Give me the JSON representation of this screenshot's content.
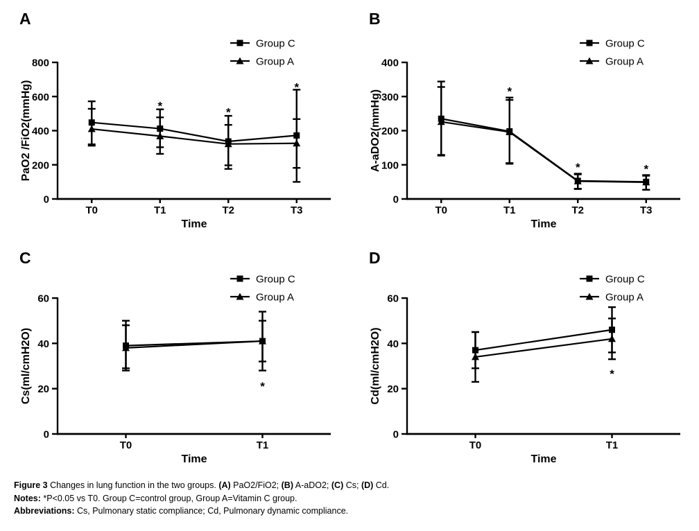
{
  "colors": {
    "ink": "#000000",
    "background": "#ffffff"
  },
  "figure": {
    "caption": {
      "lines": [
        {
          "segments": [
            {
              "text": "Figure 3",
              "bold": true
            },
            {
              "text": " Changes in lung function in the two groups. ",
              "bold": false
            },
            {
              "text": "(A)",
              "bold": true
            },
            {
              "text": " PaO2/FiO2; ",
              "bold": false
            },
            {
              "text": "(B)",
              "bold": true
            },
            {
              "text": " A-aDO2; ",
              "bold": false
            },
            {
              "text": "(C)",
              "bold": true
            },
            {
              "text": " Cs; ",
              "bold": false
            },
            {
              "text": "(D)",
              "bold": true
            },
            {
              "text": " Cd.",
              "bold": false
            }
          ]
        },
        {
          "segments": [
            {
              "text": "Notes:",
              "bold": true
            },
            {
              "text": " *P<0.05 vs T0. Group C=control group, Group A=Vitamin C group.",
              "bold": false
            }
          ]
        },
        {
          "segments": [
            {
              "text": "Abbreviations:",
              "bold": true
            },
            {
              "text": " Cs, Pulmonary static compliance; Cd, Pulmonary dynamic compliance.",
              "bold": false
            }
          ]
        }
      ]
    }
  },
  "chart_data": [
    {
      "type": "line",
      "panel_label": "A",
      "ylabel": "PaO2 /FiO2(mmHg)",
      "xlabel": "Time",
      "ylim": [
        0,
        800
      ],
      "yticks": [
        0,
        200,
        400,
        600,
        800
      ],
      "categories": [
        "T0",
        "T1",
        "T2",
        "T3"
      ],
      "grid": false,
      "legend_position": "top-right",
      "series": [
        {
          "name": "Group C",
          "marker": "square",
          "values": [
            448,
            412,
            337,
            372
          ],
          "err_low": [
            312,
            303,
            197,
            182
          ],
          "err_high": [
            572,
            525,
            487,
            640
          ]
        },
        {
          "name": "Group A",
          "marker": "triangle",
          "values": [
            410,
            368,
            322,
            326
          ],
          "err_low": [
            320,
            264,
            176,
            100
          ],
          "err_high": [
            528,
            478,
            434,
            468
          ]
        }
      ],
      "significance": [
        {
          "category": "T1",
          "y": 558
        },
        {
          "category": "T2",
          "y": 522
        },
        {
          "category": "T3",
          "y": 668
        }
      ]
    },
    {
      "type": "line",
      "panel_label": "B",
      "ylabel": "A-aDO2(mmHg)",
      "xlabel": "Time",
      "ylim": [
        0,
        400
      ],
      "yticks": [
        0,
        100,
        200,
        300,
        400
      ],
      "categories": [
        "T0",
        "T1",
        "T2",
        "T3"
      ],
      "grid": false,
      "legend_position": "top-right",
      "series": [
        {
          "name": "Group C",
          "marker": "square",
          "values": [
            235,
            198,
            53,
            50
          ],
          "err_low": [
            127,
            103,
            30,
            27
          ],
          "err_high": [
            344,
            297,
            74,
            70
          ]
        },
        {
          "name": "Group A",
          "marker": "triangle",
          "values": [
            226,
            196,
            52,
            49
          ],
          "err_low": [
            129,
            105,
            29,
            27
          ],
          "err_high": [
            328,
            290,
            72,
            68
          ]
        }
      ],
      "significance": [
        {
          "category": "T1",
          "y": 322
        },
        {
          "category": "T2",
          "y": 99
        },
        {
          "category": "T3",
          "y": 94
        }
      ]
    },
    {
      "type": "line",
      "panel_label": "C",
      "ylabel": "Cs(ml/cmH2O)",
      "xlabel": "Time",
      "ylim": [
        0,
        60
      ],
      "yticks": [
        0,
        20,
        40,
        60
      ],
      "categories": [
        "T0",
        "T1"
      ],
      "grid": false,
      "legend_position": "top-right",
      "series": [
        {
          "name": "Group C",
          "marker": "square",
          "values": [
            39,
            41
          ],
          "err_low": [
            28,
            28
          ],
          "err_high": [
            50,
            54
          ]
        },
        {
          "name": "Group A",
          "marker": "triangle",
          "values": [
            38,
            41
          ],
          "err_low": [
            29,
            32
          ],
          "err_high": [
            48,
            50
          ]
        }
      ],
      "significance": [
        {
          "category": "T1",
          "y": 22
        }
      ]
    },
    {
      "type": "line",
      "panel_label": "D",
      "ylabel": "Cd(ml/cmH2O)",
      "xlabel": "Time",
      "ylim": [
        0,
        60
      ],
      "yticks": [
        0,
        20,
        40,
        60
      ],
      "categories": [
        "T0",
        "T1"
      ],
      "grid": false,
      "legend_position": "top-right",
      "series": [
        {
          "name": "Group C",
          "marker": "square",
          "values": [
            37,
            46
          ],
          "err_low": [
            29,
            36
          ],
          "err_high": [
            45,
            56
          ]
        },
        {
          "name": "Group A",
          "marker": "triangle",
          "values": [
            34,
            42
          ],
          "err_low": [
            23,
            33
          ],
          "err_high": [
            45,
            51
          ]
        }
      ],
      "significance": [
        {
          "category": "T1",
          "y": 27.5
        }
      ]
    }
  ]
}
